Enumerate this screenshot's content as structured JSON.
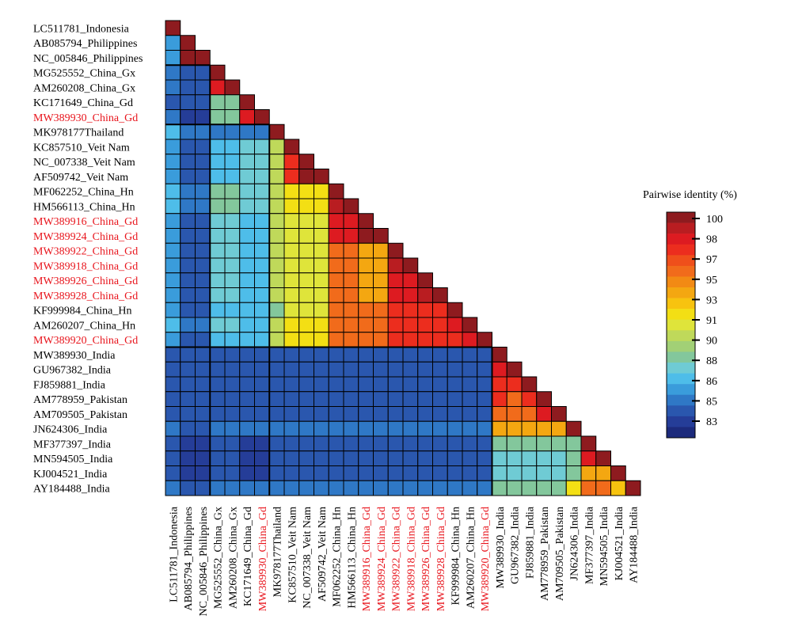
{
  "chart_data": {
    "type": "heatmap",
    "value_range": [
      83,
      100
    ],
    "colors": {
      "label_default": "#000000",
      "label_highlight": "#e8141c",
      "cell_border": "#000000"
    },
    "labels": [
      {
        "text": "LC511781_Indonesia",
        "highlight": false
      },
      {
        "text": "AB085794_Philippines",
        "highlight": false
      },
      {
        "text": "NC_005846_Philippines",
        "highlight": false
      },
      {
        "text": "MG525552_China_Gx",
        "highlight": false
      },
      {
        "text": "AM260208_China_Gx",
        "highlight": false
      },
      {
        "text": "KC171649_China_Gd",
        "highlight": false
      },
      {
        "text": "MW389930_China_Gd",
        "highlight": true
      },
      {
        "text": "MK978177Thailand",
        "highlight": false
      },
      {
        "text": "KC857510_Veit Nam",
        "highlight": false
      },
      {
        "text": "NC_007338_Veit Nam",
        "highlight": false
      },
      {
        "text": "AF509742_Veit Nam",
        "highlight": false
      },
      {
        "text": "MF062252_China_Hn",
        "highlight": false
      },
      {
        "text": "HM566113_China_Hn",
        "highlight": false
      },
      {
        "text": "MW389916_China_Gd",
        "highlight": true
      },
      {
        "text": "MW389924_China_Gd",
        "highlight": true
      },
      {
        "text": "MW389922_China_Gd",
        "highlight": true
      },
      {
        "text": "MW389918_China_Gd",
        "highlight": true
      },
      {
        "text": "MW389926_China_Gd",
        "highlight": true
      },
      {
        "text": "MW389928_China_Gd",
        "highlight": true
      },
      {
        "text": "KF999984_China_Hn",
        "highlight": false
      },
      {
        "text": "AM260207_China_Hn",
        "highlight": false
      },
      {
        "text": "MW389920_China_Gd",
        "highlight": true
      },
      {
        "text": "MW389930_India",
        "highlight": false
      },
      {
        "text": "GU967382_India",
        "highlight": false
      },
      {
        "text": "FJ859881_India",
        "highlight": false
      },
      {
        "text": "AM778959_Pakistan",
        "highlight": false
      },
      {
        "text": "AM709505_Pakistan",
        "highlight": false
      },
      {
        "text": "JN624306_India",
        "highlight": false
      },
      {
        "text": "MF377397_India",
        "highlight": false
      },
      {
        "text": "MN594505_India",
        "highlight": false
      },
      {
        "text": "KJ004521_India",
        "highlight": false
      },
      {
        "text": "AY184488_India",
        "highlight": false
      }
    ],
    "matrix": [
      [
        100
      ],
      [
        87,
        100
      ],
      [
        87,
        100,
        100
      ],
      [
        86,
        85,
        85,
        100
      ],
      [
        86,
        85,
        85,
        98,
        100
      ],
      [
        85,
        85,
        85,
        90,
        90,
        100
      ],
      [
        86,
        84,
        84,
        90,
        90,
        98,
        100
      ],
      [
        88,
        86,
        86,
        86,
        86,
        86,
        86,
        100
      ],
      [
        87,
        85,
        85,
        88,
        88,
        89,
        89,
        91,
        100
      ],
      [
        87,
        85,
        85,
        88,
        88,
        89,
        89,
        91,
        97,
        100
      ],
      [
        87,
        85,
        85,
        88,
        88,
        89,
        89,
        91,
        97,
        100,
        100
      ],
      [
        88,
        86,
        86,
        90,
        90,
        89,
        89,
        91,
        93,
        93,
        93,
        100
      ],
      [
        88,
        86,
        86,
        90,
        90,
        89,
        89,
        91,
        93,
        93,
        93,
        99,
        100
      ],
      [
        87,
        85,
        85,
        89,
        89,
        88,
        88,
        91,
        92,
        92,
        92,
        98,
        98,
        100
      ],
      [
        87,
        85,
        85,
        89,
        89,
        88,
        88,
        91,
        92,
        92,
        92,
        98,
        98,
        100,
        100
      ],
      [
        87,
        85,
        85,
        89,
        89,
        88,
        88,
        91,
        92,
        92,
        92,
        96,
        96,
        95,
        95,
        100
      ],
      [
        87,
        85,
        85,
        89,
        89,
        88,
        88,
        91,
        92,
        92,
        92,
        96,
        96,
        95,
        95,
        99,
        100
      ],
      [
        87,
        85,
        85,
        89,
        89,
        88,
        88,
        91,
        92,
        92,
        92,
        96,
        96,
        95,
        95,
        98,
        98,
        100
      ],
      [
        87,
        85,
        85,
        89,
        89,
        88,
        88,
        91,
        92,
        92,
        92,
        96,
        96,
        95,
        95,
        98,
        98,
        99,
        100
      ],
      [
        87,
        85,
        85,
        88,
        88,
        88,
        88,
        90,
        92,
        92,
        92,
        96,
        96,
        96,
        96,
        97,
        97,
        97,
        97,
        100
      ],
      [
        88,
        86,
        86,
        89,
        89,
        88,
        88,
        91,
        93,
        93,
        93,
        96,
        96,
        96,
        96,
        97,
        97,
        97,
        97,
        98,
        100
      ],
      [
        87,
        85,
        85,
        88,
        88,
        88,
        88,
        91,
        93,
        93,
        93,
        96,
        96,
        96,
        96,
        97,
        97,
        97,
        97,
        97,
        98,
        100
      ],
      [
        85,
        85,
        85,
        85,
        85,
        85,
        85,
        85,
        85,
        85,
        85,
        85,
        85,
        85,
        85,
        85,
        85,
        85,
        85,
        85,
        85,
        85,
        100
      ],
      [
        85,
        85,
        85,
        85,
        85,
        85,
        85,
        85,
        85,
        85,
        85,
        85,
        85,
        85,
        85,
        85,
        85,
        85,
        85,
        85,
        85,
        85,
        98,
        100
      ],
      [
        85,
        85,
        85,
        85,
        85,
        85,
        85,
        85,
        85,
        85,
        85,
        85,
        85,
        85,
        85,
        85,
        85,
        85,
        85,
        85,
        85,
        85,
        97,
        97,
        100
      ],
      [
        85,
        85,
        85,
        85,
        85,
        85,
        85,
        85,
        85,
        85,
        85,
        85,
        85,
        85,
        85,
        85,
        85,
        85,
        85,
        85,
        85,
        85,
        97,
        96,
        97,
        100
      ],
      [
        85,
        85,
        85,
        85,
        85,
        85,
        85,
        85,
        85,
        85,
        85,
        85,
        85,
        85,
        85,
        85,
        85,
        85,
        85,
        85,
        85,
        85,
        96,
        96,
        96,
        98,
        100
      ],
      [
        86,
        85,
        85,
        86,
        86,
        86,
        86,
        86,
        86,
        86,
        86,
        86,
        86,
        86,
        86,
        86,
        86,
        86,
        86,
        86,
        86,
        86,
        95,
        95,
        95,
        95,
        95,
        100
      ],
      [
        85,
        84,
        84,
        85,
        85,
        84,
        84,
        85,
        85,
        85,
        85,
        85,
        85,
        85,
        85,
        85,
        85,
        85,
        85,
        85,
        85,
        85,
        90,
        90,
        90,
        90,
        90,
        90,
        100
      ],
      [
        85,
        84,
        84,
        85,
        85,
        84,
        84,
        85,
        85,
        85,
        85,
        85,
        85,
        85,
        85,
        85,
        85,
        85,
        85,
        85,
        85,
        85,
        89,
        89,
        89,
        89,
        89,
        90,
        98,
        100
      ],
      [
        85,
        84,
        84,
        85,
        85,
        84,
        84,
        85,
        85,
        85,
        85,
        85,
        85,
        85,
        85,
        85,
        85,
        85,
        85,
        85,
        85,
        85,
        89,
        89,
        89,
        89,
        89,
        90,
        95,
        95,
        100
      ],
      [
        86,
        85,
        85,
        86,
        86,
        86,
        86,
        86,
        86,
        86,
        86,
        86,
        86,
        86,
        86,
        86,
        86,
        86,
        86,
        86,
        86,
        86,
        90,
        90,
        90,
        90,
        90,
        93,
        96,
        96,
        94,
        100
      ]
    ],
    "legend": {
      "title": "Pairwise identity (%)",
      "tick_labels": [
        "100",
        "98",
        "97",
        "95",
        "93",
        "91",
        "90",
        "88",
        "86",
        "85",
        "83"
      ],
      "tick_values": [
        100,
        98,
        97,
        95,
        93,
        91,
        90,
        88,
        86,
        85,
        83
      ],
      "steps": [
        {
          "min": 99.5,
          "color": "#8e1b1f"
        },
        {
          "min": 98.5,
          "color": "#b91d21"
        },
        {
          "min": 97.5,
          "color": "#dd1b21"
        },
        {
          "min": 97.0,
          "color": "#ec2d1e"
        },
        {
          "min": 96.5,
          "color": "#ef4f1b"
        },
        {
          "min": 96.0,
          "color": "#f16b1b"
        },
        {
          "min": 95.5,
          "color": "#f28a14"
        },
        {
          "min": 95.0,
          "color": "#f4a711"
        },
        {
          "min": 94.0,
          "color": "#f7c30f"
        },
        {
          "min": 93.0,
          "color": "#f3df14"
        },
        {
          "min": 92.0,
          "color": "#dfe43a"
        },
        {
          "min": 91.0,
          "color": "#bfd95a"
        },
        {
          "min": 90.5,
          "color": "#a2d076"
        },
        {
          "min": 90.0,
          "color": "#83c79c"
        },
        {
          "min": 89.0,
          "color": "#6fcbd4"
        },
        {
          "min": 88.0,
          "color": "#4ebde9"
        },
        {
          "min": 87.0,
          "color": "#3a9cdb"
        },
        {
          "min": 86.0,
          "color": "#2f78c6"
        },
        {
          "min": 85.0,
          "color": "#2a57ae"
        },
        {
          "min": 84.0,
          "color": "#253d98"
        },
        {
          "min": 0,
          "color": "#1c2a7c"
        }
      ]
    }
  }
}
